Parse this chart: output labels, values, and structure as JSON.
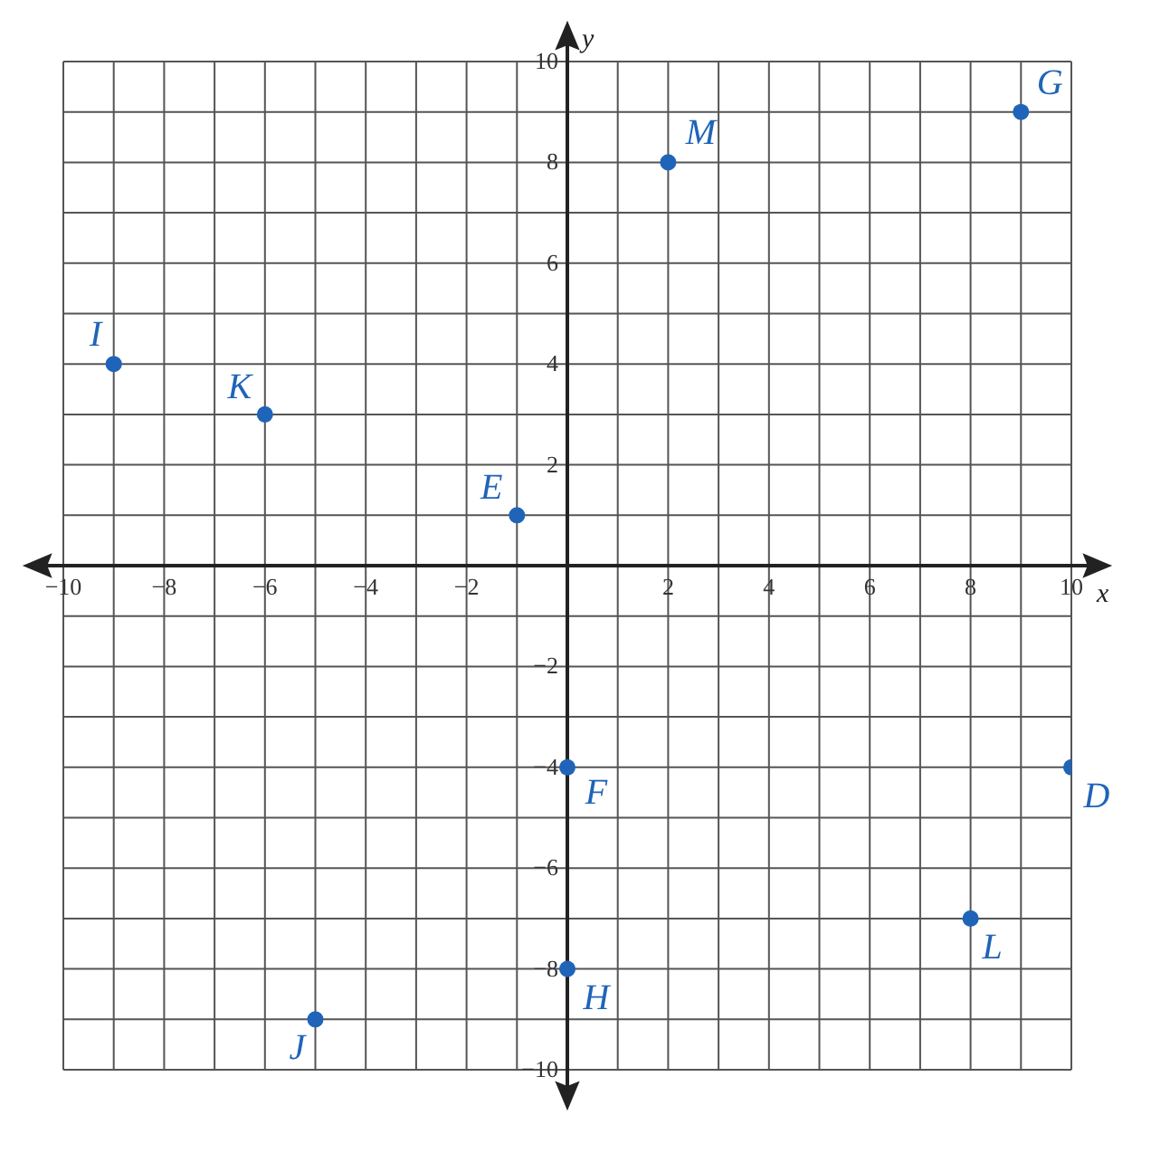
{
  "chart_data": {
    "type": "scatter",
    "xlabel": "x",
    "ylabel": "y",
    "x": [
      -9,
      -6,
      -1,
      2,
      9,
      0,
      10,
      8,
      0,
      -5
    ],
    "series": [
      {
        "color": "#1f64b8",
        "values": [
          4,
          3,
          1,
          8,
          9,
          -4,
          -4,
          -7,
          -8,
          -9
        ]
      }
    ],
    "annotations": [
      {
        "text": "I",
        "x": -9,
        "y": 4
      },
      {
        "text": "K",
        "x": -6,
        "y": 3
      },
      {
        "text": "E",
        "x": -1,
        "y": 1
      },
      {
        "text": "M",
        "x": 2,
        "y": 8
      },
      {
        "text": "G",
        "x": 9,
        "y": 9
      },
      {
        "text": "F",
        "x": 0,
        "y": -4
      },
      {
        "text": "D",
        "x": 10,
        "y": -4
      },
      {
        "text": "L",
        "x": 8,
        "y": -7
      },
      {
        "text": "H",
        "x": 0,
        "y": -8
      },
      {
        "text": "J",
        "x": -5,
        "y": -9
      }
    ],
    "xlim": [
      -10,
      10
    ],
    "ylim": [
      -10,
      10
    ],
    "xticks": [
      {
        "value": -10,
        "label": "−10"
      },
      {
        "value": -9,
        "label": null
      },
      {
        "value": -8,
        "label": "−8"
      },
      {
        "value": -7,
        "label": null
      },
      {
        "value": -6,
        "label": "−6"
      },
      {
        "value": -5,
        "label": null
      },
      {
        "value": -4,
        "label": "−4"
      },
      {
        "value": -3,
        "label": null
      },
      {
        "value": -2,
        "label": "−2"
      },
      {
        "value": -1,
        "label": null
      },
      {
        "value": 0,
        "label": null
      },
      {
        "value": 1,
        "label": null
      },
      2,
      {
        "value": 3,
        "label": null
      },
      4,
      {
        "value": 5,
        "label": null
      },
      6,
      {
        "value": 7,
        "label": null
      },
      8,
      {
        "value": 9,
        "label": null
      },
      10
    ],
    "yticks": [
      {
        "value": -10,
        "label": "−10"
      },
      {
        "value": -9,
        "label": null
      },
      {
        "value": -8,
        "label": "−8"
      },
      {
        "value": -7,
        "label": null
      },
      {
        "value": -6,
        "label": "−6"
      },
      {
        "value": -5,
        "label": null
      },
      {
        "value": -4,
        "label": "−4"
      },
      {
        "value": -3,
        "label": null
      },
      {
        "value": -2,
        "label": "−2"
      },
      {
        "value": -1,
        "label": null
      },
      {
        "value": 0,
        "label": null
      },
      {
        "value": 1,
        "label": null
      },
      2,
      {
        "value": 3,
        "label": null
      },
      4,
      {
        "value": 5,
        "label": null
      },
      6,
      {
        "value": 7,
        "label": null
      },
      8,
      {
        "value": 9,
        "label": null
      },
      10
    ],
    "grid": true,
    "marker": "circle"
  }
}
